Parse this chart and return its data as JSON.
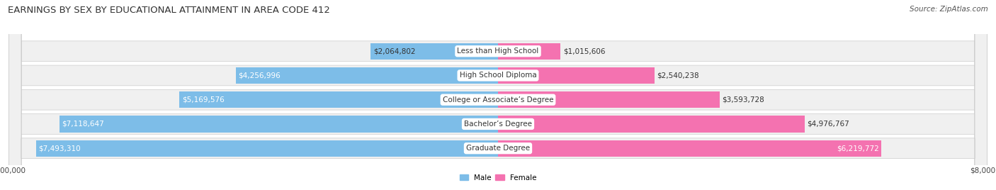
{
  "title": "EARNINGS BY SEX BY EDUCATIONAL ATTAINMENT IN AREA CODE 412",
  "source": "Source: ZipAtlas.com",
  "categories": [
    "Less than High School",
    "High School Diploma",
    "College or Associate’s Degree",
    "Bachelor’s Degree",
    "Graduate Degree"
  ],
  "male_values": [
    2064802,
    4256996,
    5169576,
    7118647,
    7493310
  ],
  "female_values": [
    1015606,
    2540238,
    3593728,
    4976767,
    6219772
  ],
  "male_labels": [
    "$2,064,802",
    "$4,256,996",
    "$5,169,576",
    "$7,118,647",
    "$7,493,310"
  ],
  "female_labels": [
    "$1,015,606",
    "$2,540,238",
    "$3,593,728",
    "$4,976,767",
    "$6,219,772"
  ],
  "male_color": "#7dbde8",
  "female_color": "#f472b0",
  "row_bg_color": "#f0f0f0",
  "max_value": 8000000,
  "title_fontsize": 9.5,
  "label_fontsize": 7.5,
  "axis_label_fontsize": 7.5,
  "source_fontsize": 7.5,
  "background_color": "#ffffff"
}
